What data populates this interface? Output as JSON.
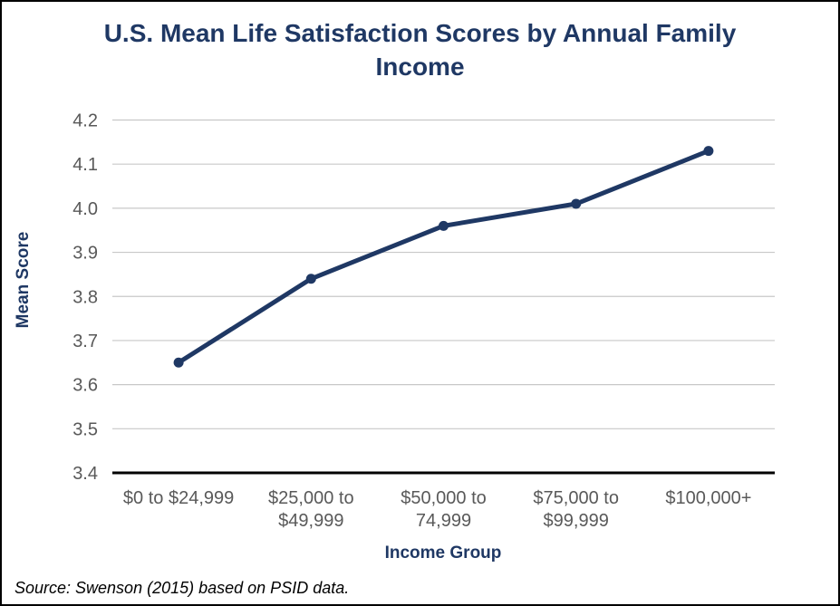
{
  "source_note": "Source: Swenson (2015) based on PSID data.",
  "chart_data": {
    "type": "line",
    "title": "U.S. Mean Life Satisfaction Scores by Annual Family Income",
    "categories": [
      "$0 to $24,999",
      "$25,000 to $49,999",
      "$50,000 to 74,999",
      "$75,000 to $99,999",
      "$100,000+"
    ],
    "category_display_lines": [
      [
        "$0 to $24,999"
      ],
      [
        "$25,000 to",
        "$49,999"
      ],
      [
        "$50,000 to",
        "74,999"
      ],
      [
        "$75,000 to",
        "$99,999"
      ],
      [
        "$100,000+"
      ]
    ],
    "values": [
      3.65,
      3.84,
      3.96,
      4.01,
      4.13
    ],
    "xlabel": "Income Group",
    "ylabel": "Mean Score",
    "ylim": [
      3.4,
      4.2
    ],
    "ytick_step": 0.1,
    "yticks": [
      "3.4",
      "3.5",
      "3.6",
      "3.7",
      "3.8",
      "3.9",
      "4.0",
      "4.1",
      "4.2"
    ],
    "grid": true,
    "legend": "none",
    "colors": {
      "line": "#1F3864",
      "title": "#1F3864",
      "axis_titles": "#1F3864",
      "tick_labels": "#595959",
      "gridline": "#C8C8C8",
      "axis_line": "#000000",
      "border": "#000000"
    }
  }
}
